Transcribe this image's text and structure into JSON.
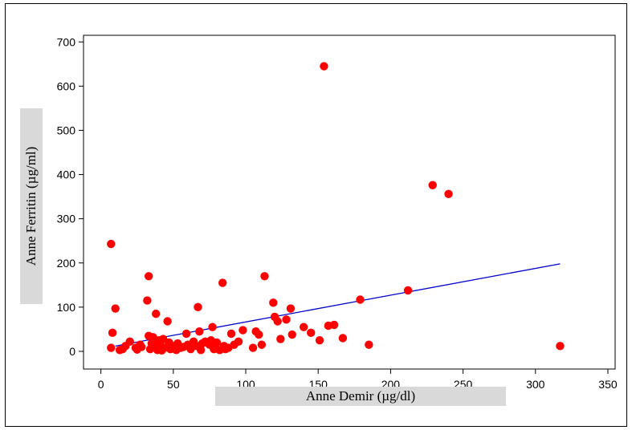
{
  "chart_data": {
    "type": "scatter",
    "title": "",
    "xlabel": "Anne Demir (µg/dl)",
    "ylabel": "Anne Ferritin (µg/ml)",
    "xlim": [
      -12,
      355
    ],
    "ylim": [
      -40,
      715
    ],
    "xticks": [
      0,
      50,
      100,
      150,
      200,
      250,
      300,
      350
    ],
    "yticks": [
      0,
      100,
      200,
      300,
      400,
      500,
      600,
      700
    ],
    "grid": false,
    "legend": "none",
    "point_color": "#ff0000",
    "line_color": "#0000cc",
    "points": [
      [
        7,
        243
      ],
      [
        8,
        42
      ],
      [
        7,
        8
      ],
      [
        10,
        97
      ],
      [
        13,
        3
      ],
      [
        15,
        5
      ],
      [
        17,
        12
      ],
      [
        20,
        22
      ],
      [
        24,
        8
      ],
      [
        25,
        4
      ],
      [
        27,
        15
      ],
      [
        28,
        10
      ],
      [
        32,
        115
      ],
      [
        33,
        170
      ],
      [
        33,
        35
      ],
      [
        34,
        5
      ],
      [
        35,
        18
      ],
      [
        36,
        32
      ],
      [
        37,
        10
      ],
      [
        38,
        85
      ],
      [
        39,
        3
      ],
      [
        40,
        25
      ],
      [
        41,
        15
      ],
      [
        42,
        2
      ],
      [
        43,
        28
      ],
      [
        44,
        8
      ],
      [
        46,
        68
      ],
      [
        47,
        20
      ],
      [
        48,
        5
      ],
      [
        50,
        12
      ],
      [
        52,
        3
      ],
      [
        53,
        18
      ],
      [
        55,
        8
      ],
      [
        57,
        10
      ],
      [
        59,
        40
      ],
      [
        60,
        15
      ],
      [
        62,
        5
      ],
      [
        64,
        22
      ],
      [
        66,
        12
      ],
      [
        67,
        100
      ],
      [
        68,
        45
      ],
      [
        69,
        3
      ],
      [
        70,
        18
      ],
      [
        72,
        22
      ],
      [
        75,
        15
      ],
      [
        76,
        25
      ],
      [
        77,
        55
      ],
      [
        78,
        5
      ],
      [
        79,
        8
      ],
      [
        80,
        20
      ],
      [
        82,
        3
      ],
      [
        84,
        155
      ],
      [
        85,
        12
      ],
      [
        86,
        5
      ],
      [
        88,
        8
      ],
      [
        90,
        40
      ],
      [
        92,
        15
      ],
      [
        95,
        22
      ],
      [
        98,
        48
      ],
      [
        105,
        8
      ],
      [
        107,
        45
      ],
      [
        109,
        38
      ],
      [
        111,
        15
      ],
      [
        113,
        170
      ],
      [
        119,
        110
      ],
      [
        120,
        78
      ],
      [
        122,
        68
      ],
      [
        124,
        28
      ],
      [
        128,
        72
      ],
      [
        131,
        97
      ],
      [
        132,
        38
      ],
      [
        140,
        55
      ],
      [
        145,
        42
      ],
      [
        151,
        25
      ],
      [
        154,
        645
      ],
      [
        157,
        58
      ],
      [
        161,
        60
      ],
      [
        167,
        30
      ],
      [
        179,
        117
      ],
      [
        185,
        15
      ],
      [
        212,
        138
      ],
      [
        229,
        376
      ],
      [
        240,
        356
      ],
      [
        317,
        12
      ]
    ],
    "regression_line": {
      "x": [
        10,
        317
      ],
      "y": [
        12,
        198
      ]
    }
  },
  "axis": {
    "x_title": "Anne Demir (µg/dl)",
    "y_title": "Anne Ferritin (µg/ml)"
  }
}
